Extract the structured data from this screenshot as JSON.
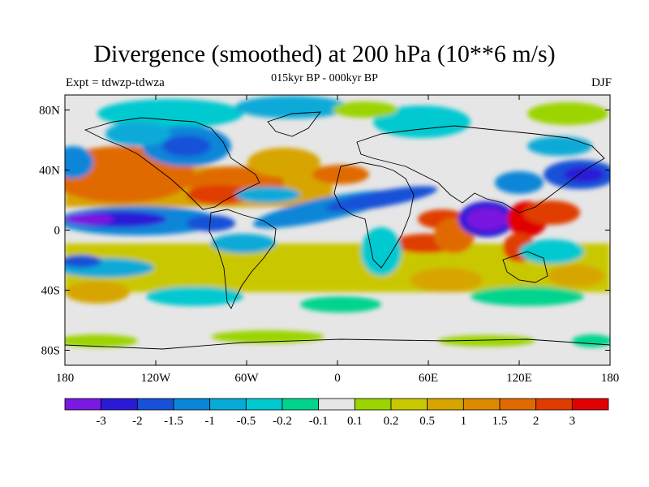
{
  "title": "Divergence (smoothed) at 200 hPa (10**6 m/s)",
  "subtitle": "015kyr BP - 000kyr BP",
  "left_string": "Expt = tdwzp-tdwza",
  "right_string": "DJF",
  "map": {
    "projection": "cylindrical equidistant",
    "lon_range": [
      -180,
      180
    ],
    "lat_range": [
      -90,
      90
    ],
    "lat_ticks": [
      {
        "value": 80,
        "label": "80N"
      },
      {
        "value": 40,
        "label": "40N"
      },
      {
        "value": 0,
        "label": "0"
      },
      {
        "value": -40,
        "label": "40S"
      },
      {
        "value": -80,
        "label": "80S"
      }
    ],
    "lon_ticks": [
      {
        "value": -180,
        "label": "180"
      },
      {
        "value": -120,
        "label": "120W"
      },
      {
        "value": -60,
        "label": "60W"
      },
      {
        "value": 0,
        "label": "0"
      },
      {
        "value": 60,
        "label": "60E"
      },
      {
        "value": 120,
        "label": "120E"
      },
      {
        "value": 180,
        "label": "180"
      }
    ]
  },
  "colorbar": {
    "labels": [
      "-3",
      "-2",
      "-1.5",
      "-1",
      "-0.5",
      "-0.2",
      "-0.1",
      "0.1",
      "0.2",
      "0.5",
      "1",
      "1.5",
      "2",
      "3"
    ],
    "colors": [
      "#7a19e0",
      "#2b1bd6",
      "#1751d8",
      "#0a86d8",
      "#08aad8",
      "#00c9d0",
      "#00d48e",
      "#e6e6e6",
      "#9bd400",
      "#c9c800",
      "#d7a500",
      "#de8900",
      "#e06a00",
      "#e03c00",
      "#e00000"
    ]
  }
}
